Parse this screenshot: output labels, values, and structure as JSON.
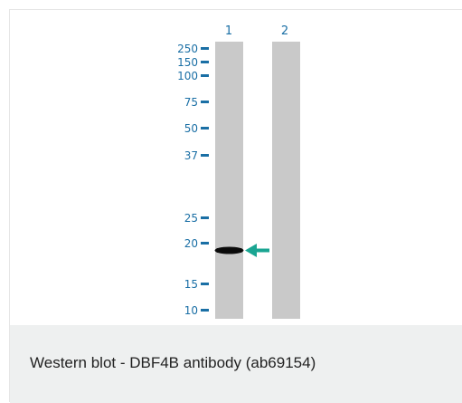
{
  "blot": {
    "lanes": [
      {
        "label": "1"
      },
      {
        "label": "2"
      }
    ],
    "markers_kda": [
      "250",
      "150",
      "100",
      "75",
      "50",
      "37",
      "25",
      "20",
      "15",
      "10"
    ],
    "band": {
      "lane": 1,
      "kda": 19
    },
    "arrow_color": "#1aa592",
    "text_color": "#1a6fa5",
    "lane_color": "#c9c9c9"
  },
  "caption": {
    "text": "Western blot - DBF4B antibody (ab69154)"
  }
}
